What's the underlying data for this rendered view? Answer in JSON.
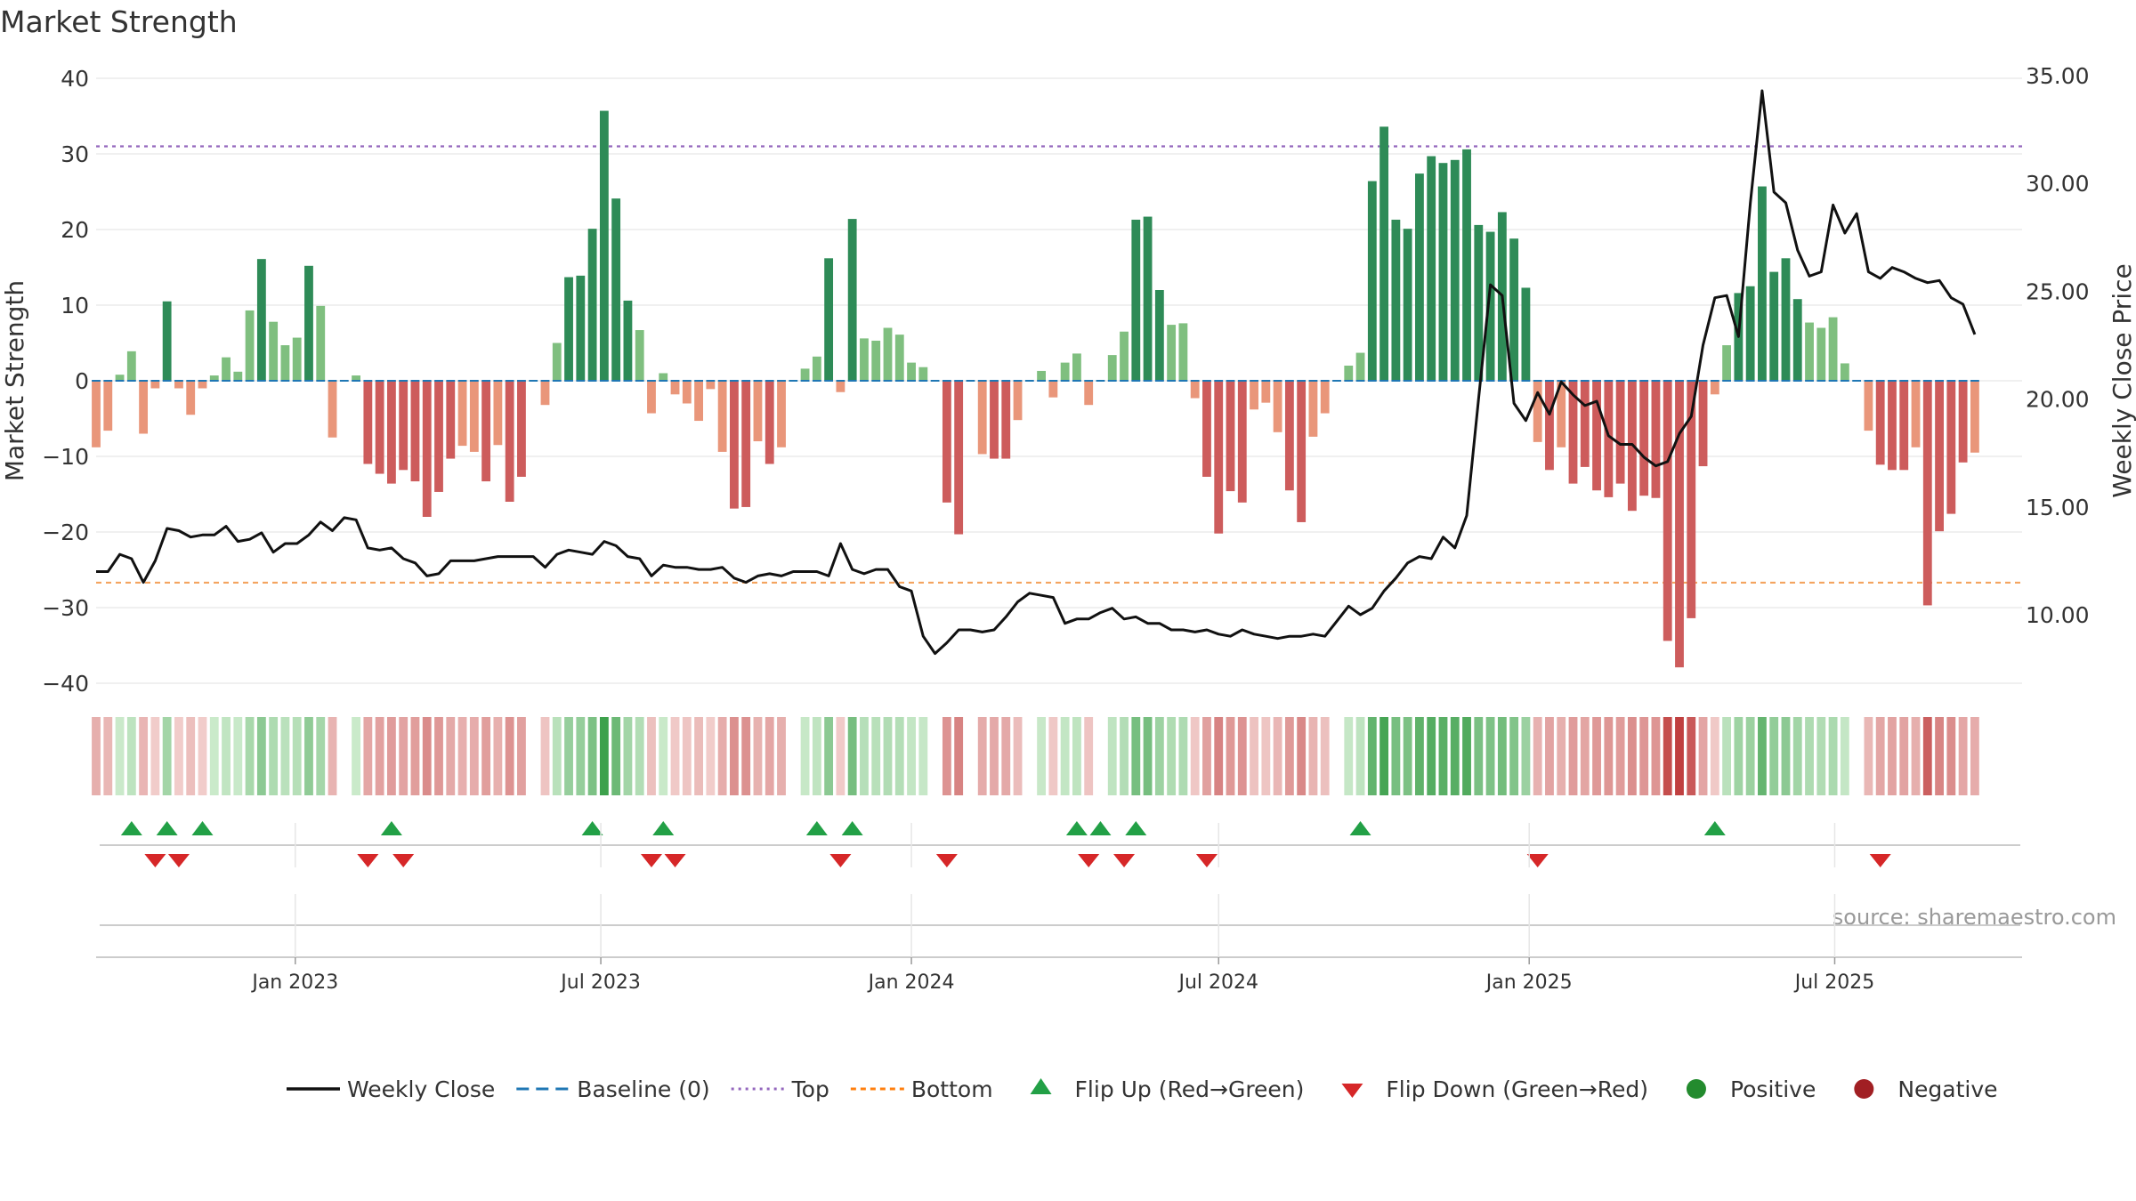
{
  "chart_data": {
    "type": "bar",
    "title": "Market Strength",
    "ylabel_left": "Market Strength",
    "ylabel_right": "Weekly Close Price",
    "ylim_left": [
      -40,
      40
    ],
    "ylim_right": [
      6.5,
      35.5
    ],
    "yticks_left": [
      40,
      30,
      20,
      10,
      0,
      -10,
      -20,
      -30,
      -40
    ],
    "yticks_right": [
      "35.00",
      "30.00",
      "25.00",
      "20.00",
      "15.00",
      "10.00"
    ],
    "x_start_date": "2022-09-05",
    "x_end_date": "2025-10-20",
    "x_tick_labels": [
      {
        "date": "2023-01-01",
        "label": "Jan 2023"
      },
      {
        "date": "2023-07-01",
        "label": "Jul 2023"
      },
      {
        "date": "2024-01-01",
        "label": "Jan 2024"
      },
      {
        "date": "2024-07-01",
        "label": "Jul 2024"
      },
      {
        "date": "2025-01-01",
        "label": "Jan 2025"
      },
      {
        "date": "2025-07-01",
        "label": "Jul 2025"
      }
    ],
    "reference_lines": {
      "top": 31,
      "bottom": -26.7,
      "baseline": 0
    },
    "strength_values": [
      -8.8,
      -6.6,
      0.8,
      3.9,
      -7,
      -1,
      10.5,
      -1,
      -4.5,
      -1,
      0.7,
      3.1,
      1.2,
      9.3,
      16.1,
      7.8,
      4.7,
      5.7,
      15.2,
      9.9,
      -7.5,
      0,
      0.7,
      -11,
      -12.3,
      -13.6,
      -11.8,
      -13.3,
      -18,
      -14.7,
      -10.3,
      -8.6,
      -9.4,
      -13.3,
      -8.5,
      -16,
      -12.7,
      0,
      -3.2,
      5,
      13.7,
      13.9,
      20.1,
      35.7,
      24.1,
      10.6,
      6.7,
      -4.3,
      1,
      -1.8,
      -3,
      -5.3,
      -1.1,
      -9.4,
      -16.9,
      -16.7,
      -8,
      -11,
      -8.8,
      0,
      1.6,
      3.2,
      16.2,
      -1.5,
      21.4,
      5.6,
      5.3,
      7,
      6.1,
      2.4,
      1.8,
      0,
      -16.1,
      -20.3,
      0,
      -9.7,
      -10.3,
      -10.3,
      -5.2,
      0,
      1.3,
      -2.2,
      2.4,
      3.6,
      -3.2,
      0,
      3.4,
      6.5,
      21.3,
      21.7,
      12,
      7.4,
      7.6,
      -2.3,
      -12.7,
      -20.2,
      -14.6,
      -16.1,
      -3.8,
      -2.9,
      -6.8,
      -14.5,
      -18.7,
      -7.4,
      -4.3,
      0,
      2,
      3.7,
      26.4,
      33.6,
      21.3,
      20.1,
      27.4,
      29.7,
      28.8,
      29.2,
      30.6,
      20.6,
      19.7,
      22.3,
      18.8,
      12.3,
      -8.1,
      -11.8,
      -8.8,
      -13.6,
      -11.4,
      -14.5,
      -15.4,
      -13.6,
      -17.2,
      -15.2,
      -15.5,
      -34.4,
      -37.9,
      -31.4,
      -11.3,
      -1.8,
      4.7,
      11.6,
      12.5,
      25.7,
      14.4,
      16.2,
      10.8,
      7.7,
      7,
      8.4,
      2.3,
      0,
      -6.6,
      -11.1,
      -11.8,
      -11.8,
      -8.8,
      -29.7,
      -19.9,
      -17.6,
      -10.8,
      -9.5
    ],
    "weekly_close": [
      12,
      12,
      12.8,
      12.6,
      11.5,
      12.5,
      14,
      13.9,
      13.6,
      13.7,
      13.7,
      14.1,
      13.4,
      13.5,
      13.8,
      12.9,
      13.3,
      13.3,
      13.7,
      14.3,
      13.9,
      14.5,
      14.4,
      13.1,
      13,
      13.1,
      12.6,
      12.4,
      11.8,
      11.9,
      12.5,
      12.5,
      12.5,
      12.6,
      12.7,
      12.7,
      12.7,
      12.7,
      12.2,
      12.8,
      13,
      12.9,
      12.8,
      13.4,
      13.2,
      12.7,
      12.6,
      11.8,
      12.3,
      12.2,
      12.2,
      12.1,
      12.1,
      12.2,
      11.7,
      11.5,
      11.8,
      11.9,
      11.8,
      12,
      12,
      12,
      11.8,
      13.3,
      12.1,
      11.9,
      12.1,
      12.1,
      11.3,
      11.1,
      9,
      8.2,
      8.7,
      9.3,
      9.3,
      9.2,
      9.3,
      9.9,
      10.6,
      11,
      10.9,
      10.8,
      9.6,
      9.8,
      9.8,
      10.1,
      10.3,
      9.8,
      9.9,
      9.6,
      9.6,
      9.3,
      9.3,
      9.2,
      9.3,
      9.1,
      9,
      9.3,
      9.1,
      9,
      8.9,
      9,
      9,
      9.1,
      9,
      9.7,
      10.4,
      10,
      10.3,
      11.1,
      11.7,
      12.4,
      12.7,
      12.6,
      13.6,
      13.1,
      14.6,
      20,
      25.3,
      24.8,
      19.8,
      19,
      20.3,
      19.3,
      20.8,
      20.2,
      19.7,
      19.9,
      18.3,
      17.9,
      17.9,
      17.3,
      16.9,
      17.1,
      18.4,
      19.2,
      22.5,
      24.7,
      24.8,
      22.9,
      29.1,
      34.3,
      29.6,
      29.1,
      26.9,
      25.7,
      25.9,
      29,
      27.7,
      28.6,
      25.9,
      25.6,
      26.1,
      25.9,
      25.6,
      25.4,
      25.5,
      24.7,
      24.4,
      23
    ]
  },
  "flip_up_dates": [
    "2022-09-26",
    "2022-10-17",
    "2022-11-07",
    "2023-02-27",
    "2023-06-26",
    "2023-08-07",
    "2023-11-06",
    "2023-11-27",
    "2024-04-08",
    "2024-04-22",
    "2024-05-13",
    "2024-09-23",
    "2025-04-21"
  ],
  "flip_down_dates": [
    "2022-10-10",
    "2022-10-24",
    "2023-02-13",
    "2023-03-06",
    "2023-07-31",
    "2023-08-14",
    "2023-11-20",
    "2024-01-22",
    "2024-04-15",
    "2024-05-06",
    "2024-06-24",
    "2025-01-06",
    "2025-07-28"
  ],
  "source_text": "source: sharemaestro.com",
  "legend": [
    {
      "label": "Weekly Close",
      "kind": "line",
      "color": "#111111"
    },
    {
      "label": "Baseline (0)",
      "kind": "dash",
      "color": "#1f77b4"
    },
    {
      "label": "Top",
      "kind": "dot",
      "color": "#9467bd"
    },
    {
      "label": "Bottom",
      "kind": "dash",
      "color": "#ff7f0e"
    },
    {
      "label": "Flip Up (Red→Green)",
      "kind": "tri-up",
      "color": "#22a046"
    },
    {
      "label": "Flip Down (Green→Red)",
      "kind": "tri-down",
      "color": "#d62728"
    },
    {
      "label": "Positive",
      "kind": "circle",
      "color": "#238b2e"
    },
    {
      "label": "Negative",
      "kind": "circle",
      "color": "#a11f23"
    }
  ],
  "colors": {
    "pos_strong": "#2e8b57",
    "pos_weak": "#7fbf7f",
    "neg_strong": "#cd5c5c",
    "neg_weak": "#e9967a",
    "price_line": "#111111"
  }
}
